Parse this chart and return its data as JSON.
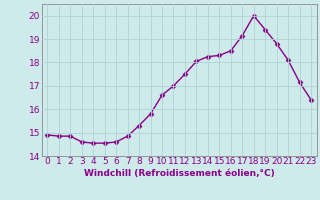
{
  "x": [
    0,
    1,
    2,
    3,
    4,
    5,
    6,
    7,
    8,
    9,
    10,
    11,
    12,
    13,
    14,
    15,
    16,
    17,
    18,
    19,
    20,
    21,
    22,
    23
  ],
  "y": [
    14.9,
    14.85,
    14.85,
    14.6,
    14.55,
    14.55,
    14.6,
    14.85,
    15.3,
    15.8,
    16.6,
    17.0,
    17.5,
    18.05,
    18.25,
    18.3,
    18.5,
    19.15,
    20.0,
    19.4,
    18.8,
    18.1,
    17.15,
    16.4
  ],
  "line_color": "#8B008B",
  "marker": "D",
  "marker_size": 2.5,
  "bg_color": "#ceeaea",
  "grid_color": "#aed4d4",
  "xlabel": "Windchill (Refroidissement éolien,°C)",
  "ylim": [
    14,
    20.5
  ],
  "xlim": [
    -0.5,
    23.5
  ],
  "yticks": [
    14,
    15,
    16,
    17,
    18,
    19,
    20
  ],
  "xticks": [
    0,
    1,
    2,
    3,
    4,
    5,
    6,
    7,
    8,
    9,
    10,
    11,
    12,
    13,
    14,
    15,
    16,
    17,
    18,
    19,
    20,
    21,
    22,
    23
  ],
  "xlabel_fontsize": 6.5,
  "tick_fontsize": 6.5,
  "label_color": "#8B008B"
}
